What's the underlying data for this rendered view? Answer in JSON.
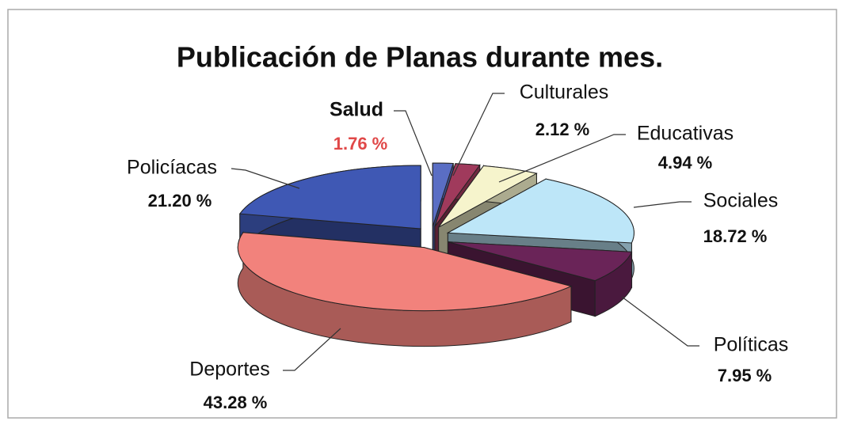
{
  "chart_data": {
    "type": "pie",
    "title": "Publicación de Planas durante mes.",
    "categories": [
      "Salud",
      "Culturales",
      "Educativas",
      "Sociales",
      "Políticas",
      "Deportes",
      "Policíacas"
    ],
    "values": [
      1.76,
      2.12,
      4.94,
      18.72,
      7.95,
      43.28,
      21.2
    ],
    "value_labels": [
      "1.76 %",
      "2.12 %",
      "4.94 %",
      "18.72 %",
      "7.95 %",
      "43.28 %",
      "21.20 %"
    ],
    "colors": [
      "#5a6ec4",
      "#a03a5c",
      "#f6f4cc",
      "#bde6f8",
      "#6a2458",
      "#f2827c",
      "#3f58b4"
    ]
  }
}
